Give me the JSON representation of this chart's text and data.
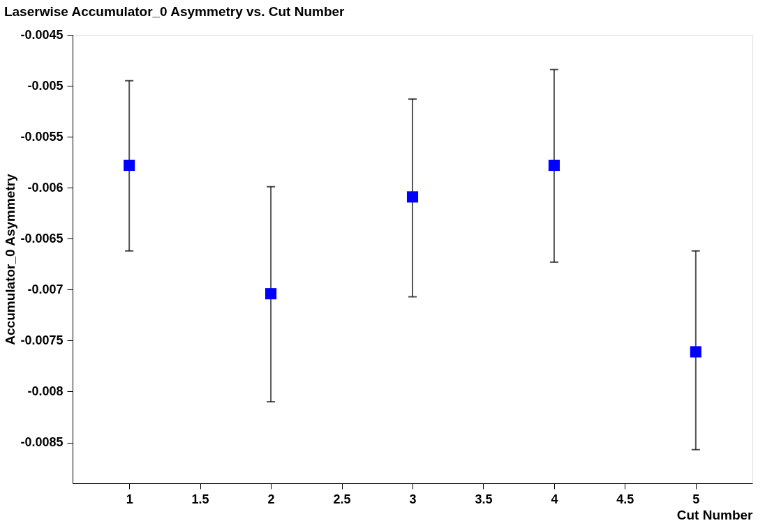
{
  "chart_data": {
    "type": "scatter",
    "title": "Laserwise Accumulator_0 Asymmetry vs. Cut Number",
    "xlabel": "Cut Number",
    "ylabel": "Accumulator_0 Asymmetry",
    "x": [
      1,
      2,
      3,
      4,
      5
    ],
    "series": [
      {
        "color": "#0000ff",
        "values": [
          -0.00578,
          -0.00704,
          -0.00609,
          -0.00578,
          -0.00761
        ],
        "errors": [
          [
            -0.00662,
            -0.00495
          ],
          [
            -0.0081,
            -0.00599
          ],
          [
            -0.00707,
            -0.00513
          ],
          [
            -0.00673,
            -0.00484
          ],
          [
            -0.00857,
            -0.00662
          ]
        ]
      }
    ],
    "xlim": [
      0.6,
      5.4
    ],
    "xticks": [
      1,
      1.5,
      2,
      2.5,
      3,
      3.5,
      4,
      4.5,
      5
    ],
    "ylim": [
      -0.0089,
      -0.0045
    ],
    "yticks": [
      -0.0085,
      -0.008,
      -0.0075,
      -0.007,
      -0.0065,
      -0.006,
      -0.0055,
      -0.005,
      -0.0045
    ],
    "marker": "square",
    "grid": false
  }
}
